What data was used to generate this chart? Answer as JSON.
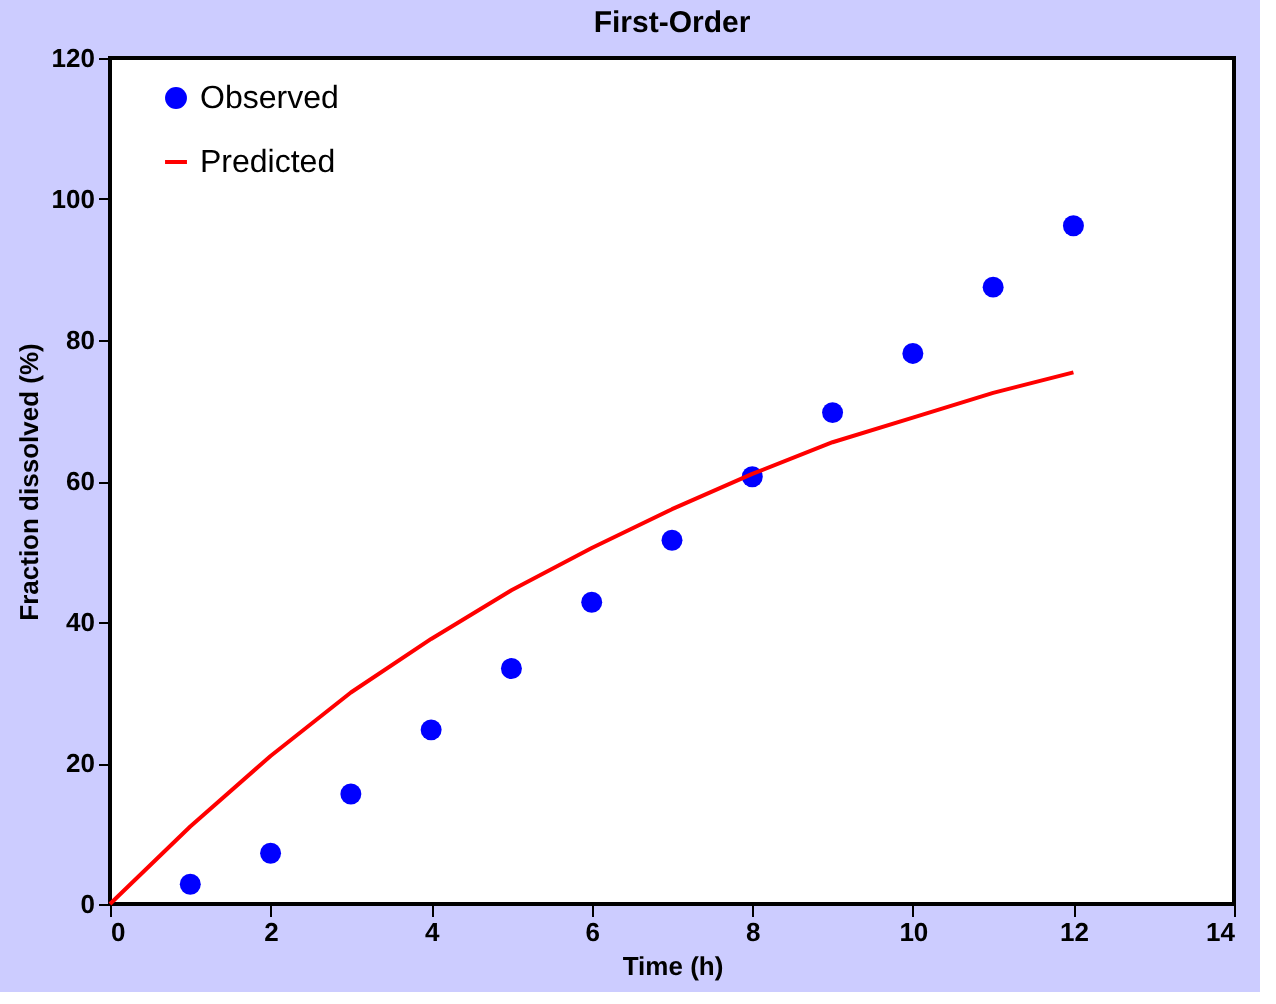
{
  "chart_data": {
    "type": "scatter",
    "title": "First-Order",
    "xlabel": "Time (h)",
    "ylabel": "Fraction dissolved (%)",
    "xlim": [
      0,
      14
    ],
    "xticks": [
      0,
      2,
      4,
      6,
      8,
      10,
      12,
      14
    ],
    "ylim": [
      0,
      120
    ],
    "yticks": [
      0,
      20,
      40,
      60,
      80,
      100,
      120
    ],
    "grid": false,
    "legend": "top left",
    "series": [
      {
        "name": "Observed",
        "marker": "circle",
        "color": "#0000ff",
        "x": [
          1,
          2,
          3,
          4,
          5,
          6,
          7,
          8,
          9,
          10,
          11,
          12
        ],
        "values": [
          2.8,
          7.2,
          15.6,
          24.7,
          33.4,
          42.8,
          51.6,
          60.6,
          69.7,
          78.1,
          87.5,
          96.2
        ]
      },
      {
        "name": "Predicted",
        "type": "line",
        "marker": "none",
        "color": "#ff0000",
        "line_style": "solid",
        "x": [
          0,
          1,
          2,
          3,
          4,
          5,
          6,
          7,
          8,
          9,
          10,
          11,
          12
        ],
        "values": [
          0,
          11,
          21,
          30,
          37.6,
          44.5,
          50.5,
          56,
          61,
          65.5,
          69,
          72.5,
          75.4
        ]
      }
    ]
  }
}
